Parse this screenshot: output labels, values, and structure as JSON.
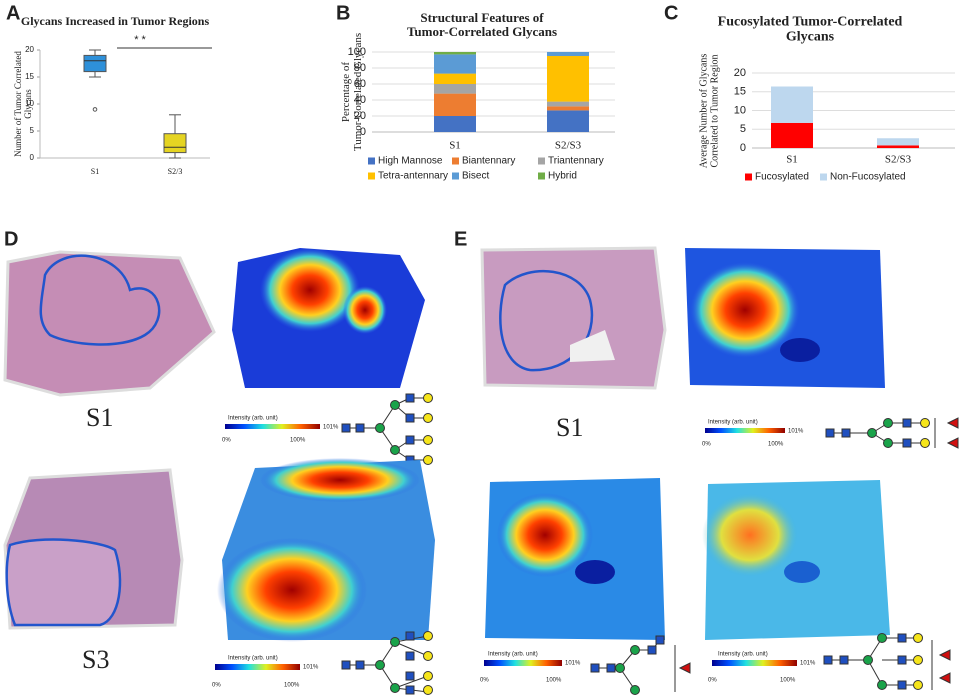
{
  "chart_data": [
    {
      "type": "box",
      "panel_label": "A",
      "title": "Glycans Increased in Tumor Regions",
      "y_label": "Number of Tumor Correlated Glycans",
      "categories": [
        "S1",
        "S2/3"
      ],
      "colors": [
        "#2e90d9",
        "#e5d422"
      ],
      "boxes": [
        {
          "min": 15,
          "q1": 16,
          "median": 18,
          "q3": 19,
          "max": 20,
          "outliers": [
            9
          ]
        },
        {
          "min": 0,
          "q1": 1,
          "median": 2,
          "q3": 4.5,
          "max": 8,
          "outliers": []
        }
      ],
      "ylim": [
        0,
        20
      ],
      "yticks": [
        0,
        5,
        10,
        15,
        20
      ],
      "grid": false,
      "significance": "* *"
    },
    {
      "type": "stacked_bar",
      "panel_label": "B",
      "title": "Structural Features of Tumor-Correlated Glycans",
      "y_label": "Percentage of Tumor-Correlated Glycans",
      "categories": [
        "S1",
        "S2/S3"
      ],
      "series": [
        {
          "name": "High Mannose",
          "color": "#4472c4",
          "values": [
            20,
            27
          ]
        },
        {
          "name": "Biantennary",
          "color": "#ed7d31",
          "values": [
            28,
            5
          ]
        },
        {
          "name": "Triantennary",
          "color": "#a5a5a5",
          "values": [
            12,
            6
          ]
        },
        {
          "name": "Tetra-antennary",
          "color": "#ffc000",
          "values": [
            13,
            57
          ]
        },
        {
          "name": "Bisect",
          "color": "#5b9bd5",
          "values": [
            24,
            5
          ]
        },
        {
          "name": "Hybrid",
          "color": "#70ad47",
          "values": [
            3,
            0
          ]
        }
      ],
      "ylim": [
        0,
        100
      ],
      "yticks": [
        0,
        20,
        40,
        60,
        80,
        100
      ],
      "grid": true,
      "legend": "bottom"
    },
    {
      "type": "stacked_bar",
      "panel_label": "C",
      "title": "Fucosylated Tumor-Correlated Glycans",
      "y_label": "Average Number of Glycans Correlated to Tumor Region",
      "categories": [
        "S1",
        "S2/S3"
      ],
      "series": [
        {
          "name": "Fucosylated",
          "color": "#ff0000",
          "values": [
            6.7,
            0.7
          ]
        },
        {
          "name": "Non-Fucosylated",
          "color": "#bdd7ee",
          "values": [
            9.7,
            1.9
          ]
        }
      ],
      "ylim": [
        0,
        20
      ],
      "yticks": [
        0,
        5,
        10,
        15,
        20
      ],
      "grid": true,
      "legend": "bottom"
    }
  ],
  "panels": {
    "D": {
      "label": "D",
      "samples": [
        "S1",
        "S3"
      ]
    },
    "E": {
      "label": "E",
      "sample": "S1"
    }
  },
  "colorbar": {
    "title": "Intensity (arb. unit)",
    "low": "0%",
    "mid": "100%",
    "high": "101%"
  }
}
